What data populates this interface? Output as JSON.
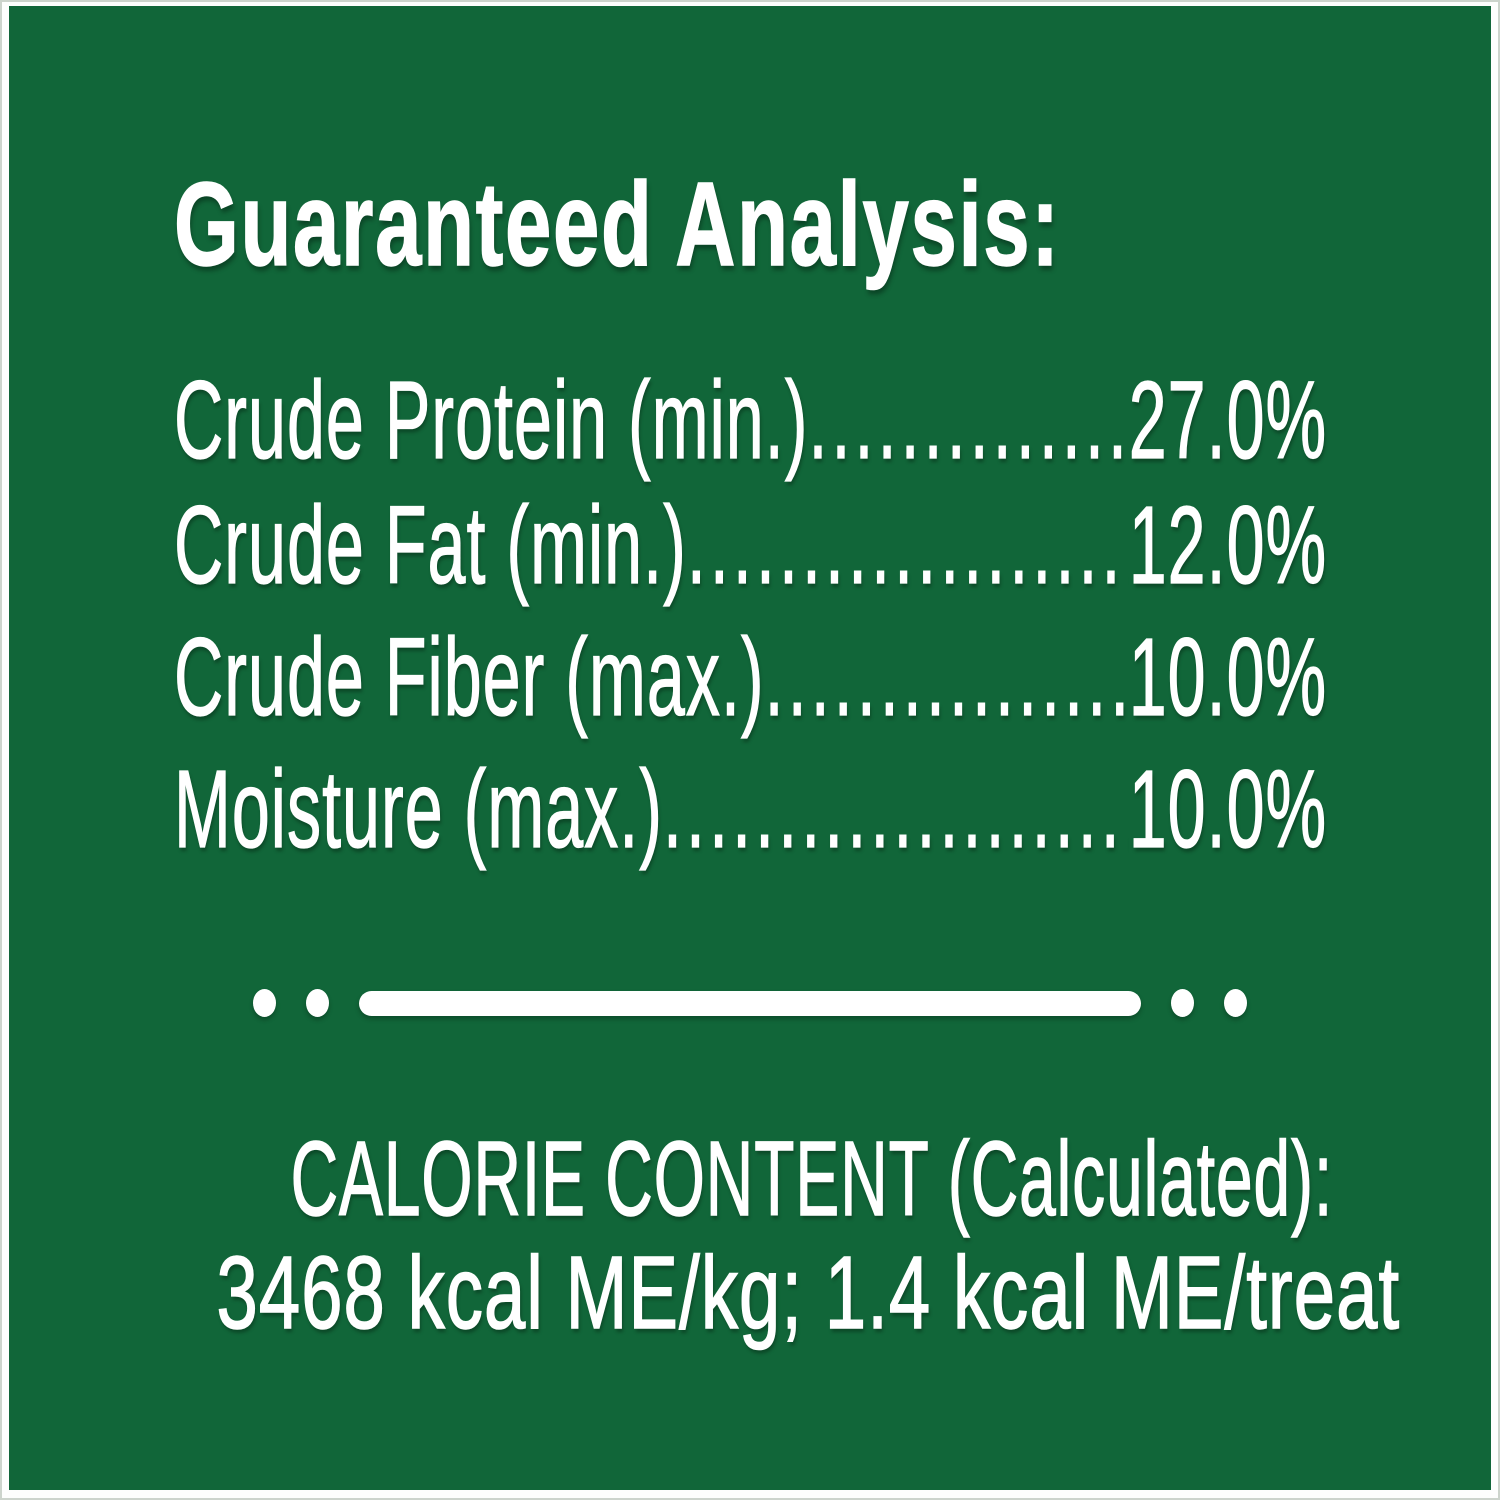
{
  "panel": {
    "background_color": "#116639",
    "frame_color": "#fdfefd",
    "frame_border_color": "#ccd4cc",
    "text_color": "#ffffff"
  },
  "title": "Guaranteed Analysis:",
  "analysis_rows": [
    {
      "label": "Crude Protein (min.)",
      "value": "27.0%"
    },
    {
      "label": "Crude Fat (min.)",
      "value": "12.0%"
    },
    {
      "label": "Crude Fiber (max.)",
      "value": "10.0%"
    },
    {
      "label": "Moisture (max.)",
      "value": "10.0%"
    }
  ],
  "leader_dots": "................................................................................",
  "calorie": {
    "heading": "CALORIE CONTENT (Calculated):",
    "value_line": "3468 kcal ME/kg; 1.4 kcal ME/treat"
  }
}
